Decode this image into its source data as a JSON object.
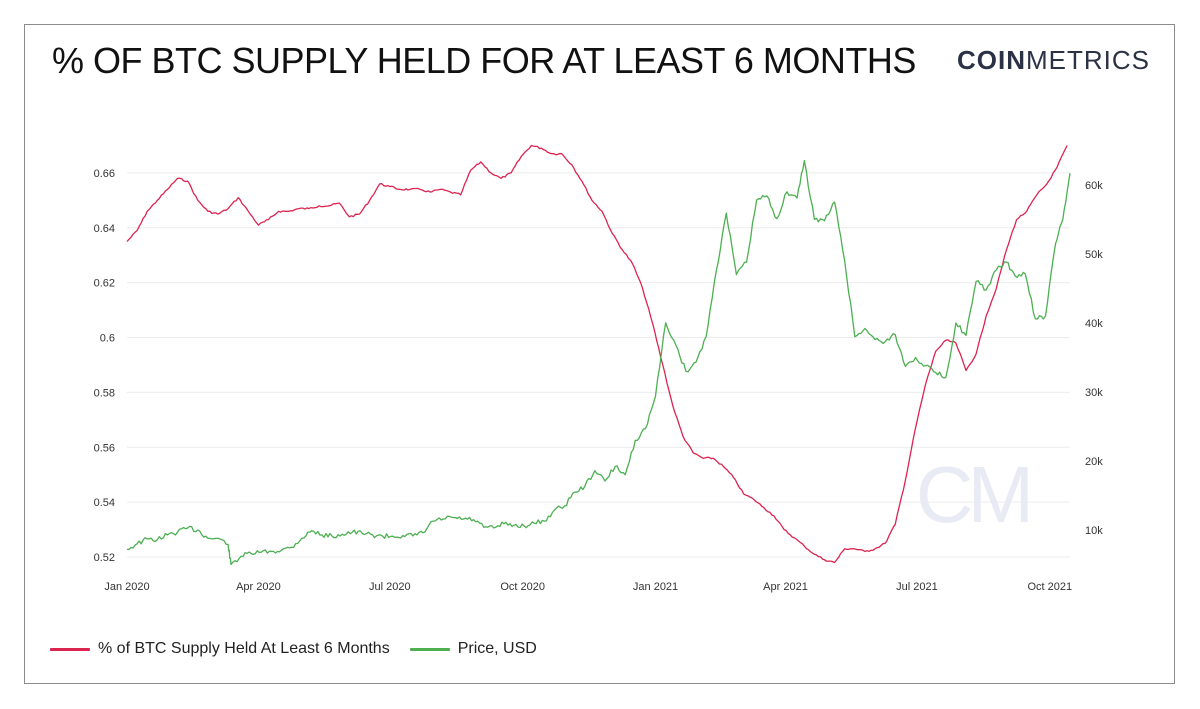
{
  "header": {
    "title": "% OF BTC SUPPLY HELD FOR AT LEAST 6 MONTHS",
    "brand_bold": "COIN",
    "brand_light": "METRICS"
  },
  "watermark": "CM",
  "colors": {
    "supply": "#dc2450",
    "price": "#4caf50",
    "grid": "#ececec",
    "watermark": "#e8ebf3"
  },
  "chart_data": {
    "type": "line",
    "title": "% OF BTC SUPPLY HELD FOR AT LEAST 6 MONTHS",
    "x_axis": {
      "ticks": [
        "Jan 2020",
        "Apr 2020",
        "Jul 2020",
        "Oct 2020",
        "Jan 2021",
        "Apr 2021",
        "Jul 2021",
        "Oct 2021"
      ],
      "range": [
        "2020-01-01",
        "2021-10-15"
      ]
    },
    "y_left": {
      "ticks": [
        "0.52",
        "0.54",
        "0.56",
        "0.58",
        "0.6",
        "0.62",
        "0.64",
        "0.66"
      ],
      "range": [
        0.516,
        0.672
      ]
    },
    "y_right": {
      "ticks": [
        "10k",
        "20k",
        "30k",
        "40k",
        "50k",
        "60k"
      ],
      "range": [
        4500,
        66500
      ]
    },
    "grid": true,
    "legend_position": "bottom-left",
    "series": [
      {
        "name": "% of BTC Supply Held At Least 6 Months",
        "axis": "left",
        "points": [
          [
            "2020-01-01",
            0.635
          ],
          [
            "2020-01-08",
            0.639
          ],
          [
            "2020-01-15",
            0.646
          ],
          [
            "2020-01-22",
            0.65
          ],
          [
            "2020-01-29",
            0.654
          ],
          [
            "2020-02-05",
            0.658
          ],
          [
            "2020-02-12",
            0.657
          ],
          [
            "2020-02-19",
            0.65
          ],
          [
            "2020-02-26",
            0.646
          ],
          [
            "2020-03-04",
            0.645
          ],
          [
            "2020-03-11",
            0.647
          ],
          [
            "2020-03-18",
            0.651
          ],
          [
            "2020-03-25",
            0.646
          ],
          [
            "2020-04-01",
            0.641
          ],
          [
            "2020-04-08",
            0.643
          ],
          [
            "2020-04-15",
            0.646
          ],
          [
            "2020-04-22",
            0.646
          ],
          [
            "2020-04-29",
            0.647
          ],
          [
            "2020-05-06",
            0.647
          ],
          [
            "2020-05-13",
            0.648
          ],
          [
            "2020-05-20",
            0.648
          ],
          [
            "2020-05-27",
            0.649
          ],
          [
            "2020-06-03",
            0.644
          ],
          [
            "2020-06-10",
            0.645
          ],
          [
            "2020-06-17",
            0.65
          ],
          [
            "2020-06-24",
            0.656
          ],
          [
            "2020-07-01",
            0.655
          ],
          [
            "2020-07-08",
            0.654
          ],
          [
            "2020-07-15",
            0.654
          ],
          [
            "2020-07-22",
            0.654
          ],
          [
            "2020-07-29",
            0.653
          ],
          [
            "2020-08-05",
            0.654
          ],
          [
            "2020-08-12",
            0.653
          ],
          [
            "2020-08-19",
            0.652
          ],
          [
            "2020-08-26",
            0.661
          ],
          [
            "2020-09-02",
            0.664
          ],
          [
            "2020-09-09",
            0.66
          ],
          [
            "2020-09-16",
            0.658
          ],
          [
            "2020-09-23",
            0.66
          ],
          [
            "2020-09-30",
            0.666
          ],
          [
            "2020-10-07",
            0.67
          ],
          [
            "2020-10-14",
            0.669
          ],
          [
            "2020-10-21",
            0.667
          ],
          [
            "2020-10-28",
            0.667
          ],
          [
            "2020-11-04",
            0.663
          ],
          [
            "2020-11-11",
            0.657
          ],
          [
            "2020-11-18",
            0.65
          ],
          [
            "2020-11-25",
            0.646
          ],
          [
            "2020-12-02",
            0.638
          ],
          [
            "2020-12-09",
            0.632
          ],
          [
            "2020-12-16",
            0.627
          ],
          [
            "2020-12-23",
            0.618
          ],
          [
            "2020-12-30",
            0.605
          ],
          [
            "2021-01-06",
            0.59
          ],
          [
            "2021-01-13",
            0.575
          ],
          [
            "2021-01-20",
            0.564
          ],
          [
            "2021-01-27",
            0.558
          ],
          [
            "2021-02-03",
            0.556
          ],
          [
            "2021-02-10",
            0.556
          ],
          [
            "2021-02-17",
            0.553
          ],
          [
            "2021-02-24",
            0.549
          ],
          [
            "2021-03-03",
            0.543
          ],
          [
            "2021-03-10",
            0.541
          ],
          [
            "2021-03-17",
            0.538
          ],
          [
            "2021-03-24",
            0.535
          ],
          [
            "2021-03-31",
            0.53
          ],
          [
            "2021-04-07",
            0.527
          ],
          [
            "2021-04-14",
            0.524
          ],
          [
            "2021-04-21",
            0.521
          ],
          [
            "2021-04-28",
            0.519
          ],
          [
            "2021-05-05",
            0.518
          ],
          [
            "2021-05-12",
            0.523
          ],
          [
            "2021-05-19",
            0.523
          ],
          [
            "2021-05-26",
            0.522
          ],
          [
            "2021-06-02",
            0.523
          ],
          [
            "2021-06-09",
            0.525
          ],
          [
            "2021-06-16",
            0.532
          ],
          [
            "2021-06-23",
            0.548
          ],
          [
            "2021-06-30",
            0.567
          ],
          [
            "2021-07-07",
            0.583
          ],
          [
            "2021-07-14",
            0.595
          ],
          [
            "2021-07-21",
            0.599
          ],
          [
            "2021-07-28",
            0.598
          ],
          [
            "2021-08-04",
            0.588
          ],
          [
            "2021-08-11",
            0.594
          ],
          [
            "2021-08-18",
            0.608
          ],
          [
            "2021-08-25",
            0.618
          ],
          [
            "2021-09-01",
            0.632
          ],
          [
            "2021-09-08",
            0.643
          ],
          [
            "2021-09-15",
            0.646
          ],
          [
            "2021-09-22",
            0.652
          ],
          [
            "2021-09-29",
            0.656
          ],
          [
            "2021-10-06",
            0.662
          ],
          [
            "2021-10-13",
            0.67
          ]
        ]
      },
      {
        "name": "Price, USD",
        "axis": "right",
        "points": [
          [
            "2020-01-01",
            7200
          ],
          [
            "2020-01-08",
            8000
          ],
          [
            "2020-01-15",
            8700
          ],
          [
            "2020-01-22",
            8600
          ],
          [
            "2020-01-29",
            9300
          ],
          [
            "2020-02-05",
            9700
          ],
          [
            "2020-02-12",
            10300
          ],
          [
            "2020-02-19",
            10000
          ],
          [
            "2020-02-26",
            8800
          ],
          [
            "2020-03-04",
            8800
          ],
          [
            "2020-03-11",
            7900
          ],
          [
            "2020-03-13",
            5000
          ],
          [
            "2020-03-20",
            6200
          ],
          [
            "2020-03-27",
            6600
          ],
          [
            "2020-04-03",
            6800
          ],
          [
            "2020-04-10",
            6900
          ],
          [
            "2020-04-17",
            7100
          ],
          [
            "2020-04-24",
            7500
          ],
          [
            "2020-05-01",
            8800
          ],
          [
            "2020-05-08",
            9900
          ],
          [
            "2020-05-15",
            9300
          ],
          [
            "2020-05-22",
            9100
          ],
          [
            "2020-05-29",
            9400
          ],
          [
            "2020-06-05",
            9700
          ],
          [
            "2020-06-12",
            9500
          ],
          [
            "2020-06-19",
            9300
          ],
          [
            "2020-06-26",
            9100
          ],
          [
            "2020-07-03",
            9100
          ],
          [
            "2020-07-10",
            9200
          ],
          [
            "2020-07-17",
            9150
          ],
          [
            "2020-07-24",
            9600
          ],
          [
            "2020-07-31",
            11300
          ],
          [
            "2020-08-07",
            11600
          ],
          [
            "2020-08-14",
            11800
          ],
          [
            "2020-08-21",
            11600
          ],
          [
            "2020-08-28",
            11500
          ],
          [
            "2020-09-04",
            10400
          ],
          [
            "2020-09-11",
            10300
          ],
          [
            "2020-09-18",
            10900
          ],
          [
            "2020-09-25",
            10700
          ],
          [
            "2020-10-02",
            10600
          ],
          [
            "2020-10-09",
            11000
          ],
          [
            "2020-10-16",
            11300
          ],
          [
            "2020-10-23",
            12900
          ],
          [
            "2020-10-30",
            13500
          ],
          [
            "2020-11-06",
            15500
          ],
          [
            "2020-11-13",
            16300
          ],
          [
            "2020-11-20",
            18600
          ],
          [
            "2020-11-27",
            17100
          ],
          [
            "2020-12-04",
            19200
          ],
          [
            "2020-12-11",
            18000
          ],
          [
            "2020-12-18",
            23000
          ],
          [
            "2020-12-25",
            24700
          ],
          [
            "2021-01-01",
            29400
          ],
          [
            "2021-01-08",
            40000
          ],
          [
            "2021-01-15",
            36800
          ],
          [
            "2021-01-22",
            33000
          ],
          [
            "2021-01-29",
            34300
          ],
          [
            "2021-02-05",
            38000
          ],
          [
            "2021-02-12",
            47500
          ],
          [
            "2021-02-19",
            55900
          ],
          [
            "2021-02-26",
            47000
          ],
          [
            "2021-03-05",
            48800
          ],
          [
            "2021-03-12",
            57800
          ],
          [
            "2021-03-19",
            58400
          ],
          [
            "2021-03-26",
            55100
          ],
          [
            "2021-04-02",
            59000
          ],
          [
            "2021-04-09",
            58100
          ],
          [
            "2021-04-14",
            63500
          ],
          [
            "2021-04-21",
            55000
          ],
          [
            "2021-04-28",
            54800
          ],
          [
            "2021-05-05",
            57500
          ],
          [
            "2021-05-12",
            49000
          ],
          [
            "2021-05-19",
            38000
          ],
          [
            "2021-05-26",
            39200
          ],
          [
            "2021-06-02",
            37600
          ],
          [
            "2021-06-09",
            37300
          ],
          [
            "2021-06-16",
            38300
          ],
          [
            "2021-06-23",
            33700
          ],
          [
            "2021-06-30",
            35000
          ],
          [
            "2021-07-07",
            33800
          ],
          [
            "2021-07-14",
            32800
          ],
          [
            "2021-07-21",
            32100
          ],
          [
            "2021-07-28",
            40000
          ],
          [
            "2021-08-04",
            38200
          ],
          [
            "2021-08-11",
            46000
          ],
          [
            "2021-08-18",
            44800
          ],
          [
            "2021-08-25",
            47700
          ],
          [
            "2021-09-01",
            48800
          ],
          [
            "2021-09-07",
            46800
          ],
          [
            "2021-09-14",
            47100
          ],
          [
            "2021-09-21",
            40600
          ],
          [
            "2021-09-28",
            41000
          ],
          [
            "2021-10-05",
            51500
          ],
          [
            "2021-10-10",
            55000
          ],
          [
            "2021-10-15",
            61700
          ]
        ]
      }
    ]
  }
}
